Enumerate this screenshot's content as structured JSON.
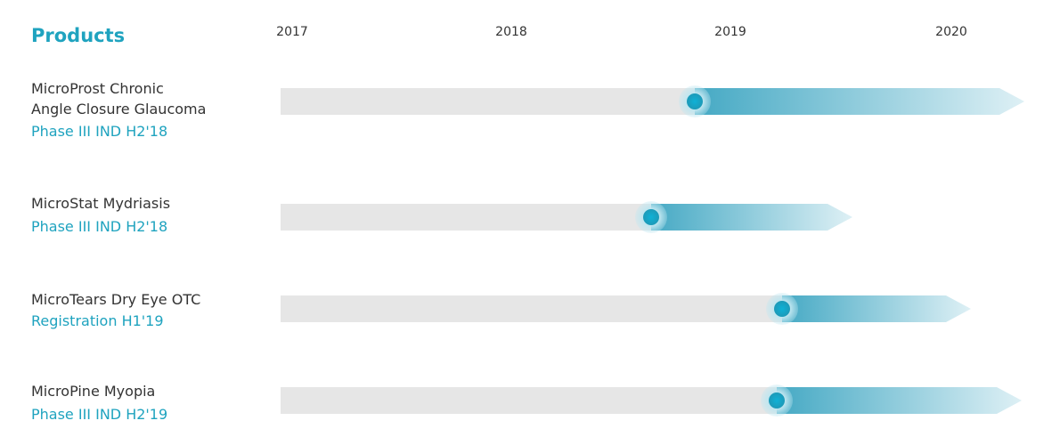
{
  "header": {
    "title": "Products"
  },
  "years": [
    "2017",
    "2018",
    "2019",
    "2020"
  ],
  "products": [
    {
      "name": [
        "MicroProst Chronic",
        "Angle Closure Glaucoma"
      ],
      "phase": "Phase III IND H2'18"
    },
    {
      "name": [
        "MicroStat Mydriasis"
      ],
      "phase": "Phase III IND H2'18"
    },
    {
      "name": [
        "MicroTears Dry Eye OTC"
      ],
      "phase": "Registration H1'19"
    },
    {
      "name": [
        "MicroPine Myopia"
      ],
      "phase": "Phase III IND H2'19"
    }
  ]
}
